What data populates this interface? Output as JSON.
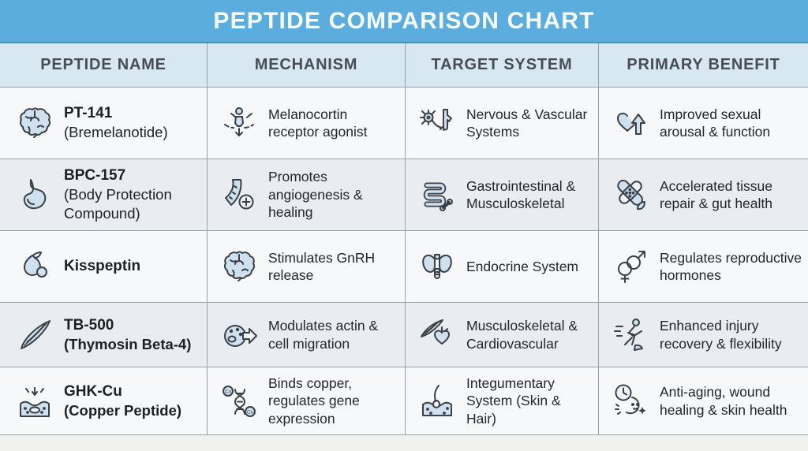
{
  "title": "PEPTIDE COMPARISON CHART",
  "colors": {
    "title_bar": "#5badde",
    "header_row_bg": "#d8e8f3",
    "row_light": "#f6f8fa",
    "row_shaded": "#e9edf2",
    "border": "#9aa2a9",
    "text": "#22262a",
    "icon_fill": "#cfe1ee",
    "icon_stroke": "#3a4046"
  },
  "columns": [
    "PEPTIDE NAME",
    "MECHANISM",
    "TARGET SYSTEM",
    "PRIMARY BENEFIT"
  ],
  "rows": [
    {
      "name": {
        "icon": "brain-icon",
        "title": "PT-141",
        "subtitle": "(Bremelanotide)",
        "subtitle_bold": false
      },
      "mechanism": {
        "icon": "receptor-agonist-person-icon",
        "text": "Melanocortin receptor agonist"
      },
      "target": {
        "icon": "neuron-vessel-icon",
        "text": "Nervous & Vascular Systems"
      },
      "benefit": {
        "icon": "heart-up-arrow-icon",
        "text": "Improved sexual arousal & function"
      }
    },
    {
      "name": {
        "icon": "stomach-icon",
        "title": "BPC-157",
        "subtitle": "(Body Protection Compound)",
        "subtitle_bold": false
      },
      "mechanism": {
        "icon": "blood-vessel-plus-icon",
        "text": "Promotes angiogenesis & healing"
      },
      "target": {
        "icon": "intestine-bone-icon",
        "text": "Gastrointestinal & Musculoskeletal"
      },
      "benefit": {
        "icon": "bandage-leaf-icon",
        "text": "Accelerated tissue repair & gut health"
      }
    },
    {
      "name": {
        "icon": "gland-icon",
        "title": "Kisspeptin",
        "subtitle": "",
        "subtitle_bold": false
      },
      "mechanism": {
        "icon": "brain-icon",
        "text": "Stimulates GnRH release"
      },
      "target": {
        "icon": "thyroid-icon",
        "text": "Endocrine System"
      },
      "benefit": {
        "icon": "gender-symbols-icon",
        "text": "Regulates reproductive hormones"
      }
    },
    {
      "name": {
        "icon": "muscle-fiber-icon",
        "title": "TB-500",
        "subtitle": "(Thymosin Beta-4)",
        "subtitle_bold": true
      },
      "mechanism": {
        "icon": "cell-migration-icon",
        "text": "Modulates actin & cell migration"
      },
      "target": {
        "icon": "muscle-heart-icon",
        "text": "Musculoskeletal & Cardiovascular"
      },
      "benefit": {
        "icon": "runner-icon",
        "text": "Enhanced injury recovery & flexibility"
      }
    },
    {
      "name": {
        "icon": "skin-layer-icon",
        "title": "GHK-Cu",
        "subtitle": "(Copper Peptide)",
        "subtitle_bold": true
      },
      "mechanism": {
        "icon": "dna-copper-icon",
        "text": "Binds copper, regulates gene expression"
      },
      "target": {
        "icon": "hair-follicle-icon",
        "text": "Integumentary System (Skin & Hair)"
      },
      "benefit": {
        "icon": "clock-face-icon",
        "text": "Anti-aging, wound healing & skin health"
      }
    }
  ],
  "chart_data": {
    "type": "table",
    "title": "PEPTIDE COMPARISON CHART",
    "columns": [
      "PEPTIDE NAME",
      "MECHANISM",
      "TARGET SYSTEM",
      "PRIMARY BENEFIT"
    ],
    "rows": [
      [
        "PT-141 (Bremelanotide)",
        "Melanocortin receptor agonist",
        "Nervous & Vascular Systems",
        "Improved sexual arousal & function"
      ],
      [
        "BPC-157 (Body Protection Compound)",
        "Promotes angiogenesis & healing",
        "Gastrointestinal & Musculoskeletal",
        "Accelerated tissue repair & gut health"
      ],
      [
        "Kisspeptin",
        "Stimulates GnRH release",
        "Endocrine System",
        "Regulates reproductive hormones"
      ],
      [
        "TB-500 (Thymosin Beta-4)",
        "Modulates actin & cell migration",
        "Musculoskeletal & Cardiovascular",
        "Enhanced injury recovery & flexibility"
      ],
      [
        "GHK-Cu (Copper Peptide)",
        "Binds copper, regulates gene expression",
        "Integumentary System (Skin & Hair)",
        "Anti-aging, wound healing & skin health"
      ]
    ]
  }
}
